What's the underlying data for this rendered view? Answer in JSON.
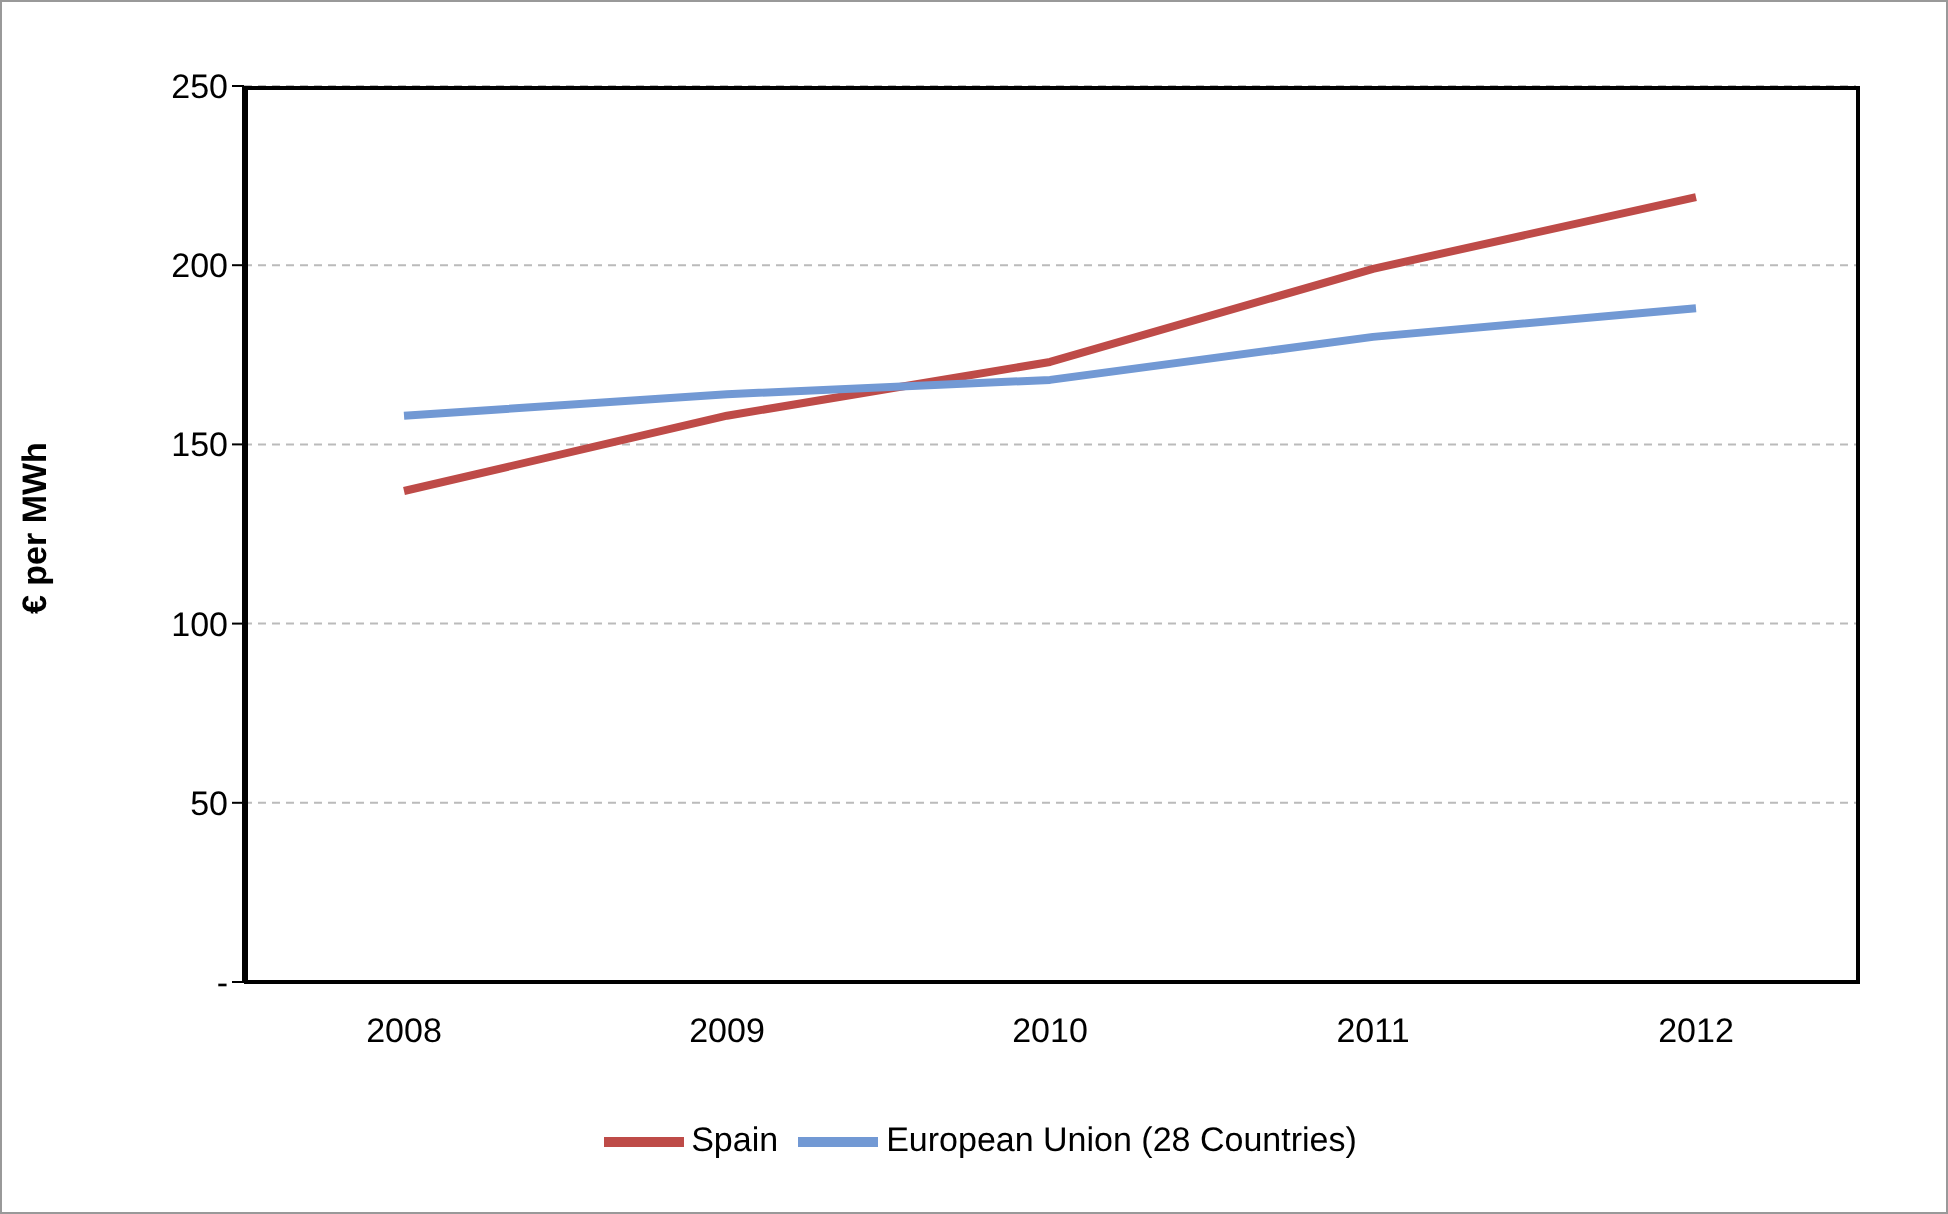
{
  "chart_data": {
    "type": "line",
    "ylabel": "€ per MWh",
    "categories": [
      "2008",
      "2009",
      "2010",
      "2011",
      "2012"
    ],
    "series": [
      {
        "name": "Spain",
        "color": "#be4b48",
        "values": [
          137,
          158,
          173,
          199,
          219
        ]
      },
      {
        "name": "European Union (28 Countries)",
        "color": "#7299d4",
        "values": [
          158,
          164,
          168,
          180,
          188
        ]
      }
    ],
    "ylim": [
      0,
      250
    ],
    "yticks": [
      {
        "value": 0,
        "label": "-"
      },
      50,
      100,
      150,
      200,
      250
    ],
    "grid": "y",
    "legend": "bottom",
    "marker": "none",
    "line_style": "solid"
  }
}
